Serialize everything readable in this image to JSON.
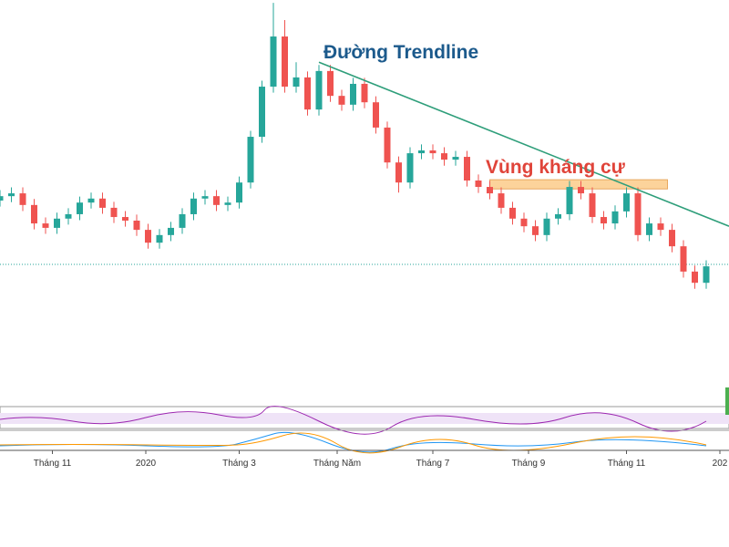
{
  "chart_data": {
    "type": "candlestick",
    "x": [
      0,
      1,
      2,
      3,
      4,
      5,
      6,
      7,
      8,
      9,
      10,
      11,
      12,
      13,
      14,
      15,
      16,
      17,
      18,
      19,
      20,
      21,
      22,
      23,
      24,
      25,
      26,
      27,
      28,
      29,
      30,
      31,
      32,
      33,
      34,
      35,
      36,
      37,
      38,
      39,
      40,
      41,
      42,
      43,
      44,
      45,
      46,
      47,
      48,
      49,
      50,
      51,
      52,
      53,
      54,
      55,
      56,
      57,
      58,
      59,
      60,
      61,
      62
    ],
    "open": [
      50.0,
      51.1,
      51.8,
      48.9,
      44.3,
      43.2,
      45.5,
      46.6,
      49.5,
      50.5,
      48.2,
      45.9,
      45.0,
      42.7,
      39.5,
      41.4,
      43.2,
      46.6,
      50.5,
      51.1,
      48.9,
      49.5,
      54.5,
      65.9,
      78.4,
      90.9,
      78.4,
      80.7,
      72.7,
      82.3,
      76.1,
      73.9,
      79.1,
      74.5,
      68.2,
      59.5,
      54.5,
      61.8,
      62.5,
      61.8,
      60.2,
      60.9,
      55.0,
      53.4,
      51.8,
      48.2,
      45.5,
      43.6,
      41.4,
      45.5,
      46.6,
      53.4,
      51.8,
      45.9,
      44.3,
      47.3,
      51.8,
      41.4,
      44.3,
      42.7,
      38.6,
      32.3,
      29.5
    ],
    "high": [
      52.6,
      53.3,
      53.3,
      50.4,
      45.8,
      47.0,
      48.1,
      51.0,
      52.0,
      52.0,
      49.7,
      47.4,
      46.5,
      44.2,
      42.9,
      44.7,
      48.1,
      52.0,
      52.6,
      52.6,
      51.0,
      56.0,
      67.4,
      79.9,
      99.3,
      95.0,
      84.5,
      82.2,
      83.8,
      83.8,
      77.6,
      80.6,
      80.6,
      76.0,
      69.7,
      61.0,
      63.3,
      64.0,
      64.0,
      63.3,
      62.4,
      62.4,
      56.5,
      54.9,
      53.3,
      49.7,
      47.0,
      45.1,
      47.0,
      48.1,
      54.9,
      54.9,
      53.3,
      47.4,
      48.8,
      53.3,
      53.3,
      45.8,
      45.8,
      44.2,
      40.1,
      33.8,
      35.1
    ],
    "low": [
      48.5,
      49.6,
      47.4,
      42.8,
      41.7,
      41.7,
      44.0,
      45.1,
      48.0,
      46.7,
      44.4,
      43.5,
      41.2,
      38.0,
      38.0,
      39.9,
      41.7,
      45.1,
      49.0,
      47.4,
      47.4,
      48.0,
      53.0,
      64.4,
      76.9,
      76.9,
      76.9,
      71.2,
      71.2,
      74.6,
      72.4,
      72.4,
      73.0,
      66.7,
      58.0,
      52.0,
      53.0,
      60.3,
      60.3,
      58.7,
      58.7,
      53.5,
      51.9,
      50.3,
      46.7,
      44.0,
      42.1,
      39.9,
      39.9,
      44.0,
      45.1,
      50.3,
      44.4,
      42.8,
      42.8,
      45.8,
      39.9,
      39.9,
      41.2,
      37.1,
      30.8,
      28.0,
      28.0
    ],
    "close": [
      51.1,
      51.8,
      48.9,
      44.3,
      43.2,
      45.5,
      46.6,
      49.5,
      50.5,
      48.2,
      45.9,
      45.0,
      42.7,
      39.5,
      41.4,
      43.2,
      46.6,
      50.5,
      51.1,
      48.9,
      49.5,
      54.5,
      65.9,
      78.4,
      90.9,
      78.4,
      80.7,
      72.7,
      82.3,
      76.1,
      73.9,
      79.1,
      74.5,
      68.2,
      59.5,
      54.5,
      61.8,
      62.5,
      61.8,
      60.2,
      60.9,
      55.0,
      53.4,
      51.8,
      48.2,
      45.5,
      43.6,
      41.4,
      45.5,
      46.6,
      53.4,
      51.8,
      45.9,
      44.3,
      47.3,
      51.8,
      41.4,
      44.3,
      42.7,
      38.6,
      32.3,
      29.5,
      33.6
    ],
    "up_color": "#26a69a",
    "down_color": "#ef5350",
    "xlim": [
      0,
      64
    ],
    "ylim": [
      0,
      100
    ],
    "xticks": [
      {
        "value": 4.6,
        "label": "Tháng 11"
      },
      {
        "value": 12.8,
        "label": "2020"
      },
      {
        "value": 21.0,
        "label": "Tháng 3"
      },
      {
        "value": 29.6,
        "label": "Tháng Năm"
      },
      {
        "value": 38.0,
        "label": "Tháng 7"
      },
      {
        "value": 46.4,
        "label": "Tháng 9"
      },
      {
        "value": 55.0,
        "label": "Tháng 11"
      },
      {
        "value": 63.2,
        "label": "202"
      }
    ],
    "trendline": {
      "label": "Đường Trendline",
      "x": [
        28,
        64
      ],
      "y": [
        84.5,
        43.6
      ],
      "color": "#2e9e7a"
    },
    "resistance_zone": {
      "label": "Vùng kháng cự",
      "x": [
        43.0,
        58.6
      ],
      "y": [
        52.9,
        55.2
      ],
      "color": "#fcd39b"
    },
    "reference_line": 34.1
  }
}
